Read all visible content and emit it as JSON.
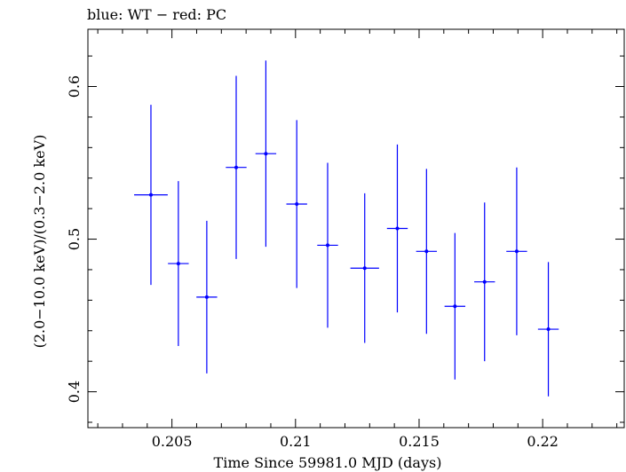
{
  "chart_data": {
    "type": "scatter",
    "title": "blue: WT − red: PC",
    "xlabel": "Time Since 59981.0 MJD (days)",
    "ylabel": "(2.0−10.0 keV)/(0.3−2.0 keV)",
    "xlim": [
      0.2016,
      0.2233
    ],
    "ylim": [
      0.3765,
      0.6375
    ],
    "x_ticks": [
      0.205,
      0.21,
      0.215,
      0.22
    ],
    "x_tick_labels": [
      "0.205",
      "0.21",
      "0.215",
      "0.22"
    ],
    "y_ticks": [
      0.4,
      0.5,
      0.6
    ],
    "y_tick_labels": [
      "0.4",
      "0.5",
      "0.6"
    ],
    "grid": false,
    "legend": "none",
    "series": [
      {
        "color": "#0000ff",
        "points": [
          {
            "x": 0.20415,
            "y": 0.529,
            "xerr": 0.00068,
            "yerr_low": 0.059,
            "yerr_high": 0.059
          },
          {
            "x": 0.20526,
            "y": 0.484,
            "xerr": 0.00042,
            "yerr_low": 0.054,
            "yerr_high": 0.054
          },
          {
            "x": 0.20641,
            "y": 0.462,
            "xerr": 0.00042,
            "yerr_low": 0.05,
            "yerr_high": 0.05
          },
          {
            "x": 0.2076,
            "y": 0.547,
            "xerr": 0.00042,
            "yerr_low": 0.06,
            "yerr_high": 0.06
          },
          {
            "x": 0.2088,
            "y": 0.556,
            "xerr": 0.00042,
            "yerr_low": 0.061,
            "yerr_high": 0.061
          },
          {
            "x": 0.21005,
            "y": 0.523,
            "xerr": 0.00042,
            "yerr_low": 0.055,
            "yerr_high": 0.055
          },
          {
            "x": 0.2113,
            "y": 0.496,
            "xerr": 0.00042,
            "yerr_low": 0.054,
            "yerr_high": 0.054
          },
          {
            "x": 0.2128,
            "y": 0.481,
            "xerr": 0.00058,
            "yerr_low": 0.049,
            "yerr_high": 0.049
          },
          {
            "x": 0.21412,
            "y": 0.507,
            "xerr": 0.00042,
            "yerr_low": 0.055,
            "yerr_high": 0.055
          },
          {
            "x": 0.2153,
            "y": 0.492,
            "xerr": 0.00042,
            "yerr_low": 0.054,
            "yerr_high": 0.054
          },
          {
            "x": 0.21645,
            "y": 0.456,
            "xerr": 0.00042,
            "yerr_low": 0.048,
            "yerr_high": 0.048
          },
          {
            "x": 0.21765,
            "y": 0.472,
            "xerr": 0.00042,
            "yerr_low": 0.052,
            "yerr_high": 0.052
          },
          {
            "x": 0.21895,
            "y": 0.492,
            "xerr": 0.00042,
            "yerr_low": 0.055,
            "yerr_high": 0.055
          },
          {
            "x": 0.22023,
            "y": 0.441,
            "xerr": 0.00042,
            "yerr_low": 0.044,
            "yerr_high": 0.044
          }
        ]
      }
    ]
  }
}
